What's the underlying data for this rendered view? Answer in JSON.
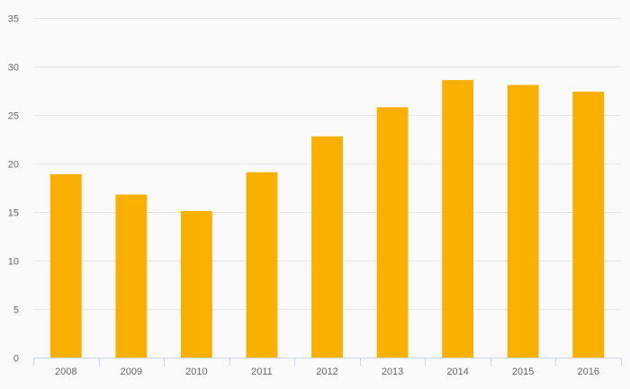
{
  "chart_data": {
    "type": "bar",
    "categories": [
      "2008",
      "2009",
      "2010",
      "2011",
      "2012",
      "2013",
      "2014",
      "2015",
      "2016"
    ],
    "values": [
      18.9,
      16.8,
      15.1,
      19.1,
      22.8,
      25.8,
      28.6,
      28.1,
      27.4
    ],
    "title": "",
    "xlabel": "",
    "ylabel": "",
    "ylim": [
      0,
      35
    ],
    "yticks": [
      0,
      5,
      10,
      15,
      20,
      25,
      30,
      35
    ],
    "grid": true,
    "legend": "none",
    "bar_color": "#f9b000"
  }
}
